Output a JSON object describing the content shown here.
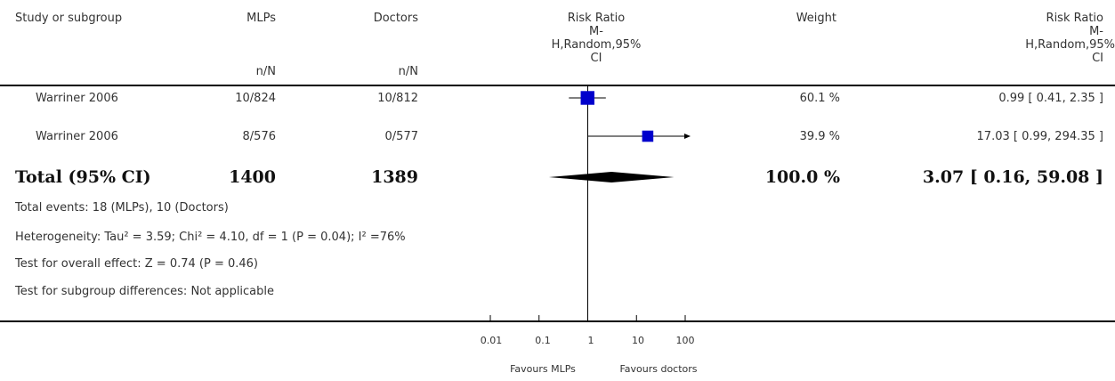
{
  "header": {
    "study": "Study or subgroup",
    "group1": "MLPs",
    "group2": "Doctors",
    "n_label1": "n/N",
    "n_label2": "n/N",
    "effect_line1": "Risk Ratio",
    "effect_line2": "M-",
    "effect_line3": "H,Random,95%",
    "effect_line4": "CI",
    "weight": "Weight",
    "rr_line1": "Risk Ratio",
    "rr_line2": "M-",
    "rr_line3": "H,Random,95%",
    "rr_line4": "CI"
  },
  "rows": [
    {
      "study": "Warriner 2006",
      "g1": "10/824",
      "g2": "10/812",
      "weight": "60.1 %",
      "ci_text": "0.99 [ 0.41, 2.35 ]"
    },
    {
      "study": "Warriner 2006",
      "g1": "8/576",
      "g2": "0/577",
      "weight": "39.9 %",
      "ci_text": "17.03 [ 0.99, 294.35 ]"
    }
  ],
  "total": {
    "label": "Total (95% CI)",
    "g1": "1400",
    "g2": "1389",
    "weight": "100.0 %",
    "ci_text": "3.07 [ 0.16, 59.08 ]"
  },
  "notes": {
    "events": "Total events: 18 (MLPs), 10 (Doctors)",
    "heterogeneity": "Heterogeneity: Tau² = 3.59; Chi² = 4.10, df = 1 (P = 0.04); I² =76%",
    "overall": "Test for overall effect: Z = 0.74 (P = 0.46)",
    "subgroup": "Test for subgroup differences: Not applicable"
  },
  "axis": {
    "ticks": [
      "0.01",
      "0.1",
      "1",
      "10",
      "100"
    ],
    "favours_left": "Favours MLPs",
    "favours_right": "Favours doctors"
  },
  "chart_data": {
    "type": "forest",
    "scale": "log",
    "xlim": [
      0.01,
      100
    ],
    "null_value": 1,
    "studies": [
      {
        "name": "Warriner 2006",
        "rr": 0.99,
        "lower": 0.41,
        "upper": 2.35,
        "weight": 60.1
      },
      {
        "name": "Warriner 2006",
        "rr": 17.03,
        "lower": 0.99,
        "upper": 294.35,
        "weight": 39.9,
        "arrow_right": true
      }
    ],
    "pooled": {
      "rr": 3.07,
      "lower": 0.16,
      "upper": 59.08
    },
    "colors": {
      "marker": "#0000cc",
      "diamond": "#000000",
      "line": "#000000"
    }
  }
}
